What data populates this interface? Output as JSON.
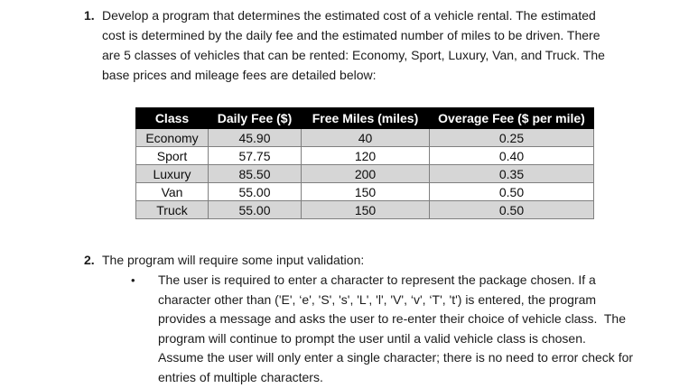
{
  "document": {
    "item1": {
      "number": "1.",
      "text": "Develop a program that determines the estimated cost of a vehicle rental. The estimated\ncost is determined by the daily fee and the estimated number of miles to be driven. There\nare 5 classes of vehicles that can be rented: Economy, Sport, Luxury, Van, and Truck. The\nbase prices and mileage fees are detailed below:"
    },
    "table": {
      "headers": [
        "Class",
        "Daily Fee ($)",
        "Free Miles (miles)",
        "Overage Fee ($ per mile)"
      ],
      "rows": [
        [
          "Economy",
          "45.90",
          "40",
          "0.25"
        ],
        [
          "Sport",
          "57.75",
          "120",
          "0.40"
        ],
        [
          "Luxury",
          "85.50",
          "200",
          "0.35"
        ],
        [
          "Van",
          "55.00",
          "150",
          "0.50"
        ],
        [
          "Truck",
          "55.00",
          "150",
          "0.50"
        ]
      ],
      "colors": {
        "header_bg": "#000000",
        "header_text": "#ffffff",
        "row_stripe": "#d6d6d6",
        "row_plain": "#ffffff",
        "cell_border": "#7f7f7f"
      }
    },
    "item2": {
      "number": "2.",
      "text": "The program will require some input validation:"
    },
    "bullet": {
      "marker": "•",
      "text": "The user is required to enter a character to represent the package chosen. If a\ncharacter other than ('E', ‘e', 'S', 's', 'L', 'l', 'V', ‘v', ‘T', 't') is entered, the program\nprovides a message and asks the user to re-enter their choice of vehicle class.  The\nprogram will continue to prompt the user until a valid vehicle class is chosen.\nAssume the user will only enter a single character; there is no need to error check for\nentries of multiple characters."
    }
  }
}
